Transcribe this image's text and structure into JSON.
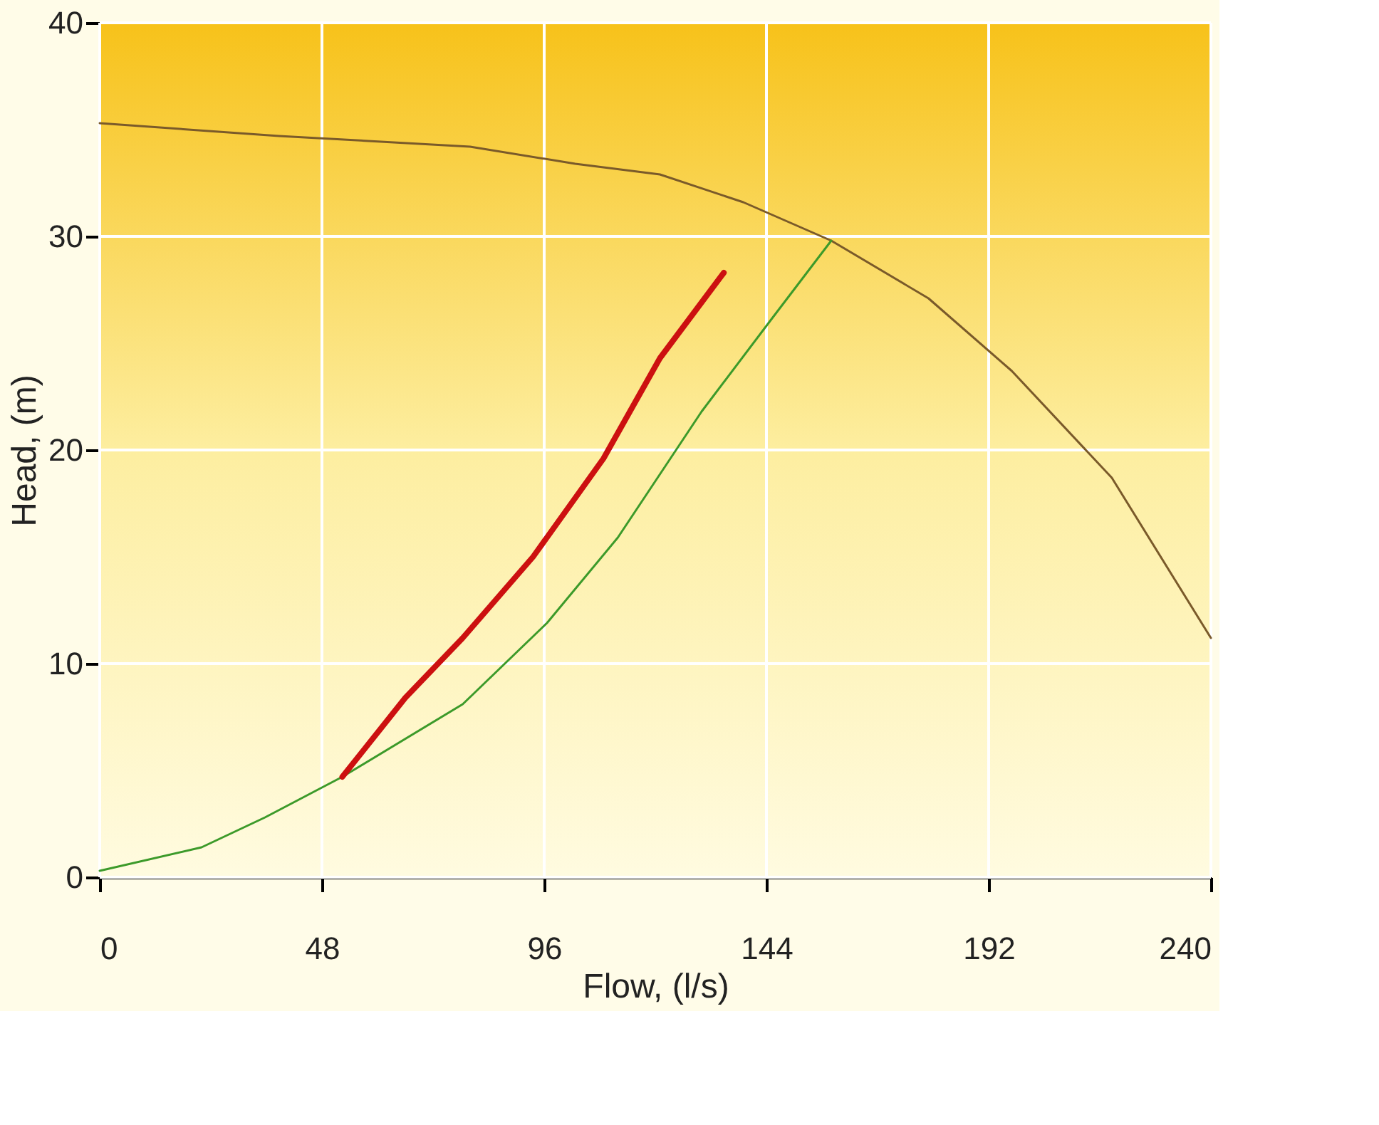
{
  "chart_data": {
    "type": "line",
    "xlabel": "Flow, (l/s)",
    "ylabel": "Head, (m)",
    "xlim": [
      0,
      240
    ],
    "ylim": [
      0,
      40
    ],
    "xticks": [
      0,
      48,
      96,
      144,
      192,
      240
    ],
    "yticks": [
      0,
      10,
      20,
      30,
      40
    ],
    "grid": true,
    "series": [
      {
        "color": "#7a5a2a",
        "x": [
          0,
          38.7,
          80,
          102.7,
          121,
          139,
          158,
          179,
          197,
          218.6,
          240
        ],
        "values": [
          35.3,
          34.7,
          34.2,
          33.4,
          32.9,
          31.6,
          29.8,
          27.1,
          23.7,
          18.7,
          11.2
        ]
      },
      {
        "color": "#3c9a2a",
        "x": [
          0,
          22,
          35.7,
          52.4,
          78.4,
          96.6,
          111.9,
          130,
          145,
          158
        ],
        "values": [
          0.3,
          1.4,
          2.8,
          4.7,
          8.1,
          11.9,
          15.9,
          21.8,
          26.1,
          29.8
        ]
      },
      {
        "color": "#cc1010",
        "x": [
          52.4,
          66,
          78.4,
          93.6,
          108.8,
          121,
          134.8
        ],
        "values": [
          4.7,
          8.4,
          11.2,
          15.0,
          19.6,
          24.3,
          28.3
        ]
      }
    ]
  }
}
